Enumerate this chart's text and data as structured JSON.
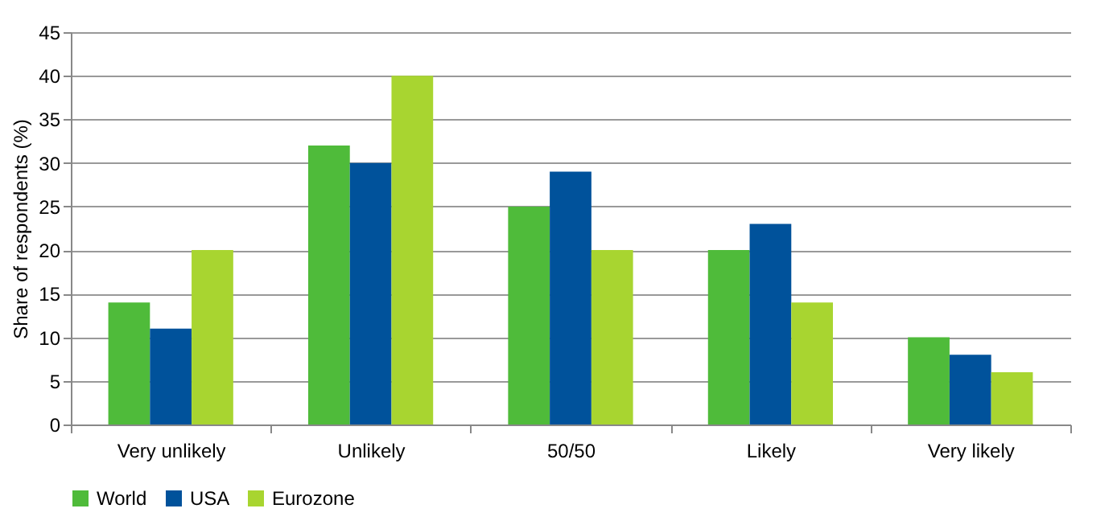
{
  "chart_data": {
    "type": "bar",
    "ylabel": "Share of respondents (%)",
    "categories": [
      "Very unlikely",
      "Unlikely",
      "50/50",
      "Likely",
      "Very likely"
    ],
    "series": [
      {
        "name": "World",
        "color": "#4fbb3a",
        "values": [
          14,
          32,
          25,
          20,
          10
        ]
      },
      {
        "name": "USA",
        "color": "#00529b",
        "values": [
          11,
          30,
          29,
          23,
          8
        ]
      },
      {
        "name": "Eurozone",
        "color": "#a8d530",
        "values": [
          20,
          40,
          20,
          14,
          6
        ]
      }
    ],
    "ylim": [
      0,
      45
    ],
    "yticks": [
      0,
      5,
      10,
      15,
      20,
      25,
      30,
      35,
      40,
      45
    ],
    "grid": "y",
    "legend": "bottom"
  }
}
